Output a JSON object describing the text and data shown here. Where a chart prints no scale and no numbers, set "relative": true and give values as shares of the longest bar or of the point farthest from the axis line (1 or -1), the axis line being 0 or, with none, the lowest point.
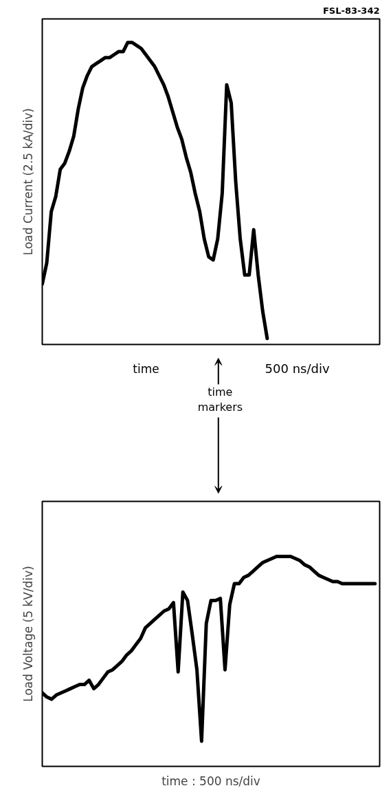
{
  "chart_data": [
    {
      "type": "line",
      "relative": true,
      "ylabel": "Load Current (2.5 kA/div)",
      "annotations": [
        "FSL-83-342",
        "time",
        "500 ns/div",
        "time markers"
      ],
      "categories": [
        null,
        null,
        null,
        null,
        null,
        null,
        null,
        null,
        null,
        null,
        null,
        null,
        null,
        null,
        null,
        null,
        null,
        null,
        null,
        null,
        null,
        null,
        null,
        null,
        null,
        null,
        null,
        null,
        null,
        null,
        null,
        null,
        null,
        null,
        null,
        null,
        null,
        null,
        null,
        null,
        null,
        null,
        null,
        null,
        null,
        null,
        null,
        null,
        null,
        null,
        null,
        null,
        null,
        null,
        null,
        null,
        null,
        null,
        null,
        null,
        null,
        null,
        null,
        null,
        null,
        null,
        null,
        null,
        null,
        null,
        null,
        null,
        null,
        null,
        null
      ],
      "series": [
        {
          "color": "#000000",
          "values": [
            0.2,
            0.27,
            0.44,
            0.49,
            0.58,
            0.6,
            0.64,
            0.69,
            0.78,
            0.85,
            0.89,
            0.92,
            0.93,
            0.94,
            0.95,
            0.95,
            0.96,
            0.97,
            0.97,
            1.0,
            1.0,
            0.99,
            0.98,
            0.96,
            0.94,
            0.92,
            0.89,
            0.86,
            0.82,
            0.77,
            0.72,
            0.68,
            0.62,
            0.57,
            0.5,
            0.44,
            0.35,
            0.29,
            0.28,
            0.35,
            0.5,
            0.86,
            0.8,
            0.54,
            0.35,
            0.23,
            0.23,
            0.38,
            0.23,
            0.11,
            0.02,
            null,
            null,
            null,
            null,
            null,
            null,
            null,
            null,
            null,
            null,
            null,
            null,
            null,
            null,
            null,
            null,
            null,
            null,
            null,
            null,
            null,
            null,
            null,
            null
          ]
        }
      ]
    },
    {
      "type": "line",
      "relative": true,
      "ylabel": "Load Voltage (5 kV/div)",
      "xlabel": "time : 500 ns/div",
      "categories": [
        null,
        null,
        null,
        null,
        null,
        null,
        null,
        null,
        null,
        null,
        null,
        null,
        null,
        null,
        null,
        null,
        null,
        null,
        null,
        null,
        null,
        null,
        null,
        null,
        null,
        null,
        null,
        null,
        null,
        null,
        null,
        null,
        null,
        null,
        null,
        null,
        null,
        null,
        null,
        null,
        null,
        null,
        null,
        null,
        null,
        null,
        null,
        null,
        null,
        null,
        null,
        null,
        null,
        null,
        null,
        null,
        null,
        null,
        null,
        null,
        null,
        null,
        null,
        null,
        null,
        null,
        null,
        null,
        null,
        null,
        null,
        null
      ],
      "series": [
        {
          "color": "#000000",
          "values": [
            0.35,
            0.33,
            0.32,
            0.34,
            0.35,
            0.36,
            0.37,
            0.38,
            0.39,
            0.39,
            0.41,
            0.37,
            0.39,
            0.42,
            0.45,
            0.46,
            0.48,
            0.5,
            0.53,
            0.55,
            0.58,
            0.61,
            0.66,
            0.68,
            0.7,
            0.72,
            0.74,
            0.75,
            0.78,
            0.45,
            0.83,
            0.79,
            0.63,
            0.46,
            0.12,
            0.68,
            0.79,
            0.79,
            0.8,
            0.46,
            0.77,
            0.87,
            0.87,
            0.9,
            0.91,
            0.93,
            0.95,
            0.97,
            0.98,
            0.99,
            1.0,
            1.0,
            1.0,
            1.0,
            0.99,
            0.98,
            0.96,
            0.95,
            0.93,
            0.91,
            0.9,
            0.89,
            0.88,
            0.88,
            0.87,
            0.87,
            0.87,
            0.87,
            0.87,
            0.87,
            0.87,
            0.87
          ]
        }
      ]
    }
  ]
}
